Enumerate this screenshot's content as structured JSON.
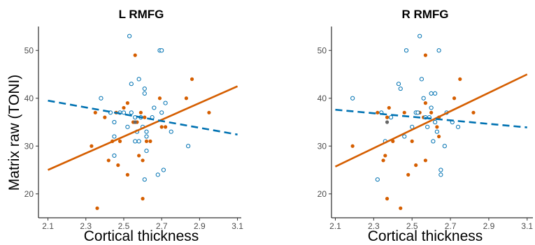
{
  "figure": {
    "ylabel": "Matrix raw (TONI)",
    "colors": {
      "filled": "#D55E00",
      "open": "#0072B2",
      "overlap": "#666666"
    }
  },
  "chart_data": [
    {
      "type": "scatter",
      "title": "L RMFG",
      "xlabel": "Cortical thickness",
      "ylabel": "Matrix raw (TONI)",
      "xlim": [
        2.05,
        3.12
      ],
      "ylim": [
        15,
        55
      ],
      "xticks": [
        "2.1",
        "2.3",
        "2.5",
        "2.7",
        "2.9",
        "3.1"
      ],
      "yticks": [
        "20",
        "30",
        "40",
        "50"
      ],
      "grid": false,
      "series": [
        {
          "marker": "filled-circle",
          "color": "#D55E00",
          "points": [
            [
              2.33,
              30
            ],
            [
              2.35,
              37
            ],
            [
              2.36,
              17
            ],
            [
              2.4,
              36
            ],
            [
              2.42,
              27
            ],
            [
              2.44,
              31
            ],
            [
              2.46,
              37
            ],
            [
              2.47,
              26
            ],
            [
              2.48,
              31
            ],
            [
              2.5,
              38
            ],
            [
              2.52,
              39
            ],
            [
              2.52,
              24
            ],
            [
              2.55,
              35
            ],
            [
              2.56,
              49
            ],
            [
              2.57,
              35
            ],
            [
              2.59,
              37
            ],
            [
              2.58,
              28
            ],
            [
              2.6,
              27
            ],
            [
              2.61,
              36
            ],
            [
              2.62,
              31
            ],
            [
              2.6,
              19
            ],
            [
              2.64,
              31
            ],
            [
              2.69,
              40
            ],
            [
              2.7,
              34
            ],
            [
              2.72,
              34
            ],
            [
              2.83,
              40
            ],
            [
              2.86,
              44
            ],
            [
              2.95,
              37
            ]
          ],
          "fit": {
            "x": [
              2.1,
              3.1
            ],
            "y": [
              25,
              42.5
            ],
            "style": "solid"
          }
        },
        {
          "marker": "open-circle",
          "color": "#0072B2",
          "points": [
            [
              2.38,
              40
            ],
            [
              2.43,
              37
            ],
            [
              2.45,
              35
            ],
            [
              2.45,
              32
            ],
            [
              2.45,
              28
            ],
            [
              2.48,
              37
            ],
            [
              2.5,
              37
            ],
            [
              2.52,
              34
            ],
            [
              2.53,
              53
            ],
            [
              2.54,
              43
            ],
            [
              2.54,
              37
            ],
            [
              2.56,
              36
            ],
            [
              2.56,
              31
            ],
            [
              2.57,
              33
            ],
            [
              2.58,
              31
            ],
            [
              2.58,
              44
            ],
            [
              2.59,
              36
            ],
            [
              2.6,
              34
            ],
            [
              2.61,
              42
            ],
            [
              2.61,
              41
            ],
            [
              2.62,
              33
            ],
            [
              2.62,
              32
            ],
            [
              2.62,
              29
            ],
            [
              2.61,
              23
            ],
            [
              2.65,
              36
            ],
            [
              2.66,
              38
            ],
            [
              2.68,
              24
            ],
            [
              2.69,
              50
            ],
            [
              2.7,
              50
            ],
            [
              2.7,
              37
            ],
            [
              2.71,
              25
            ],
            [
              2.72,
              39
            ],
            [
              2.75,
              33
            ],
            [
              2.84,
              30
            ]
          ],
          "fit": {
            "x": [
              2.1,
              3.1
            ],
            "y": [
              39.5,
              32.4
            ],
            "style": "dashed"
          }
        },
        {
          "marker": "filled-circle",
          "color": "#666666",
          "points": [
            [
              2.56,
              35
            ]
          ]
        }
      ]
    },
    {
      "type": "scatter",
      "title": "R RMFG",
      "xlabel": "Cortical thickness",
      "ylabel": "",
      "xlim": [
        2.08,
        3.13
      ],
      "ylim": [
        15,
        55
      ],
      "xticks": [
        "2.1",
        "2.3",
        "2.5",
        "2.7",
        "2.9",
        "3.1"
      ],
      "yticks": [
        "20",
        "30",
        "40",
        "50"
      ],
      "grid": false,
      "series": [
        {
          "marker": "filled-circle",
          "color": "#D55E00",
          "points": [
            [
              2.19,
              30
            ],
            [
              2.32,
              37
            ],
            [
              2.35,
              27
            ],
            [
              2.36,
              28
            ],
            [
              2.37,
              36
            ],
            [
              2.37,
              19
            ],
            [
              2.38,
              38
            ],
            [
              2.4,
              31
            ],
            [
              2.44,
              17
            ],
            [
              2.46,
              37
            ],
            [
              2.48,
              24
            ],
            [
              2.5,
              31
            ],
            [
              2.52,
              26
            ],
            [
              2.54,
              37
            ],
            [
              2.56,
              36
            ],
            [
              2.57,
              39
            ],
            [
              2.57,
              27
            ],
            [
              2.57,
              49
            ],
            [
              2.6,
              37
            ],
            [
              2.61,
              31
            ],
            [
              2.63,
              34
            ],
            [
              2.64,
              32
            ],
            [
              2.64,
              36
            ],
            [
              2.72,
              40
            ],
            [
              2.75,
              44
            ],
            [
              2.82,
              37
            ]
          ],
          "fit": {
            "x": [
              2.1,
              3.1
            ],
            "y": [
              25.7,
              45
            ],
            "style": "solid"
          }
        },
        {
          "marker": "open-circle",
          "color": "#0072B2",
          "points": [
            [
              2.19,
              40
            ],
            [
              2.32,
              23
            ],
            [
              2.34,
              37
            ],
            [
              2.36,
              31
            ],
            [
              2.39,
              36
            ],
            [
              2.43,
              43
            ],
            [
              2.44,
              42
            ],
            [
              2.46,
              32
            ],
            [
              2.47,
              50
            ],
            [
              2.5,
              34
            ],
            [
              2.52,
              37
            ],
            [
              2.53,
              37
            ],
            [
              2.54,
              53
            ],
            [
              2.55,
              44
            ],
            [
              2.56,
              40
            ],
            [
              2.57,
              36
            ],
            [
              2.58,
              34
            ],
            [
              2.59,
              36
            ],
            [
              2.6,
              41
            ],
            [
              2.6,
              38
            ],
            [
              2.61,
              31
            ],
            [
              2.62,
              35
            ],
            [
              2.62,
              41
            ],
            [
              2.63,
              33
            ],
            [
              2.64,
              50
            ],
            [
              2.65,
              25
            ],
            [
              2.65,
              24
            ],
            [
              2.67,
              30
            ],
            [
              2.68,
              37
            ],
            [
              2.71,
              35
            ],
            [
              2.74,
              34
            ]
          ],
          "fit": {
            "x": [
              2.1,
              3.1
            ],
            "y": [
              37.6,
              33.9
            ],
            "style": "dashed"
          }
        },
        {
          "marker": "filled-circle",
          "color": "#666666",
          "points": [
            [
              2.37,
              35
            ]
          ]
        }
      ]
    }
  ]
}
